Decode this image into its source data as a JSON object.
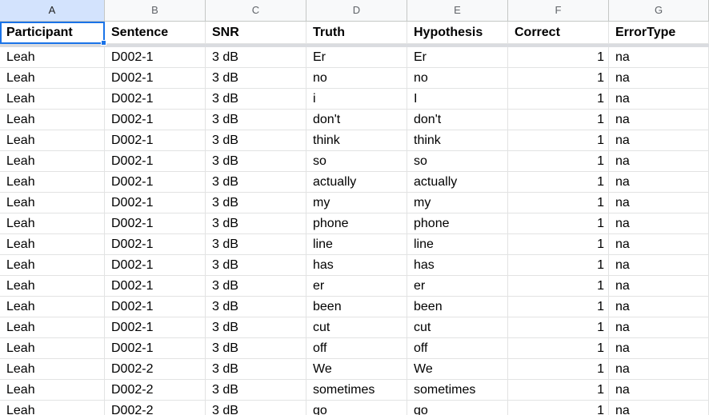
{
  "column_letters": [
    "A",
    "B",
    "C",
    "D",
    "E",
    "F",
    "G"
  ],
  "header": [
    "Participant",
    "Sentence",
    "SNR",
    "Truth",
    "Hypothesis",
    "Correct",
    "ErrorType"
  ],
  "rows": [
    [
      "Leah",
      "D002-1",
      "3 dB",
      "Er",
      "Er",
      "1",
      "na"
    ],
    [
      "Leah",
      "D002-1",
      "3 dB",
      "no",
      "no",
      "1",
      "na"
    ],
    [
      "Leah",
      "D002-1",
      "3 dB",
      "i",
      "I",
      "1",
      "na"
    ],
    [
      "Leah",
      "D002-1",
      "3 dB",
      "don't",
      "don't",
      "1",
      "na"
    ],
    [
      "Leah",
      "D002-1",
      "3 dB",
      "think",
      "think",
      "1",
      "na"
    ],
    [
      "Leah",
      "D002-1",
      "3 dB",
      "so",
      "so",
      "1",
      "na"
    ],
    [
      "Leah",
      "D002-1",
      "3 dB",
      "actually",
      "actually",
      "1",
      "na"
    ],
    [
      "Leah",
      "D002-1",
      "3 dB",
      "my",
      "my",
      "1",
      "na"
    ],
    [
      "Leah",
      "D002-1",
      "3 dB",
      "phone",
      "phone",
      "1",
      "na"
    ],
    [
      "Leah",
      "D002-1",
      "3 dB",
      "line",
      "line",
      "1",
      "na"
    ],
    [
      "Leah",
      "D002-1",
      "3 dB",
      "has",
      "has",
      "1",
      "na"
    ],
    [
      "Leah",
      "D002-1",
      "3 dB",
      "er",
      "er",
      "1",
      "na"
    ],
    [
      "Leah",
      "D002-1",
      "3 dB",
      "been",
      "been",
      "1",
      "na"
    ],
    [
      "Leah",
      "D002-1",
      "3 dB",
      "cut",
      "cut",
      "1",
      "na"
    ],
    [
      "Leah",
      "D002-1",
      "3 dB",
      "off",
      "off",
      "1",
      "na"
    ],
    [
      "Leah",
      "D002-2",
      "3 dB",
      "We",
      "We",
      "1",
      "na"
    ],
    [
      "Leah",
      "D002-2",
      "3 dB",
      "sometimes",
      "sometimes",
      "1",
      "na"
    ],
    [
      "Leah",
      "D002-2",
      "3 dB",
      "go",
      "go",
      "1",
      "na"
    ]
  ],
  "selected_cell": "A1",
  "accent_color": "#1a73e8"
}
